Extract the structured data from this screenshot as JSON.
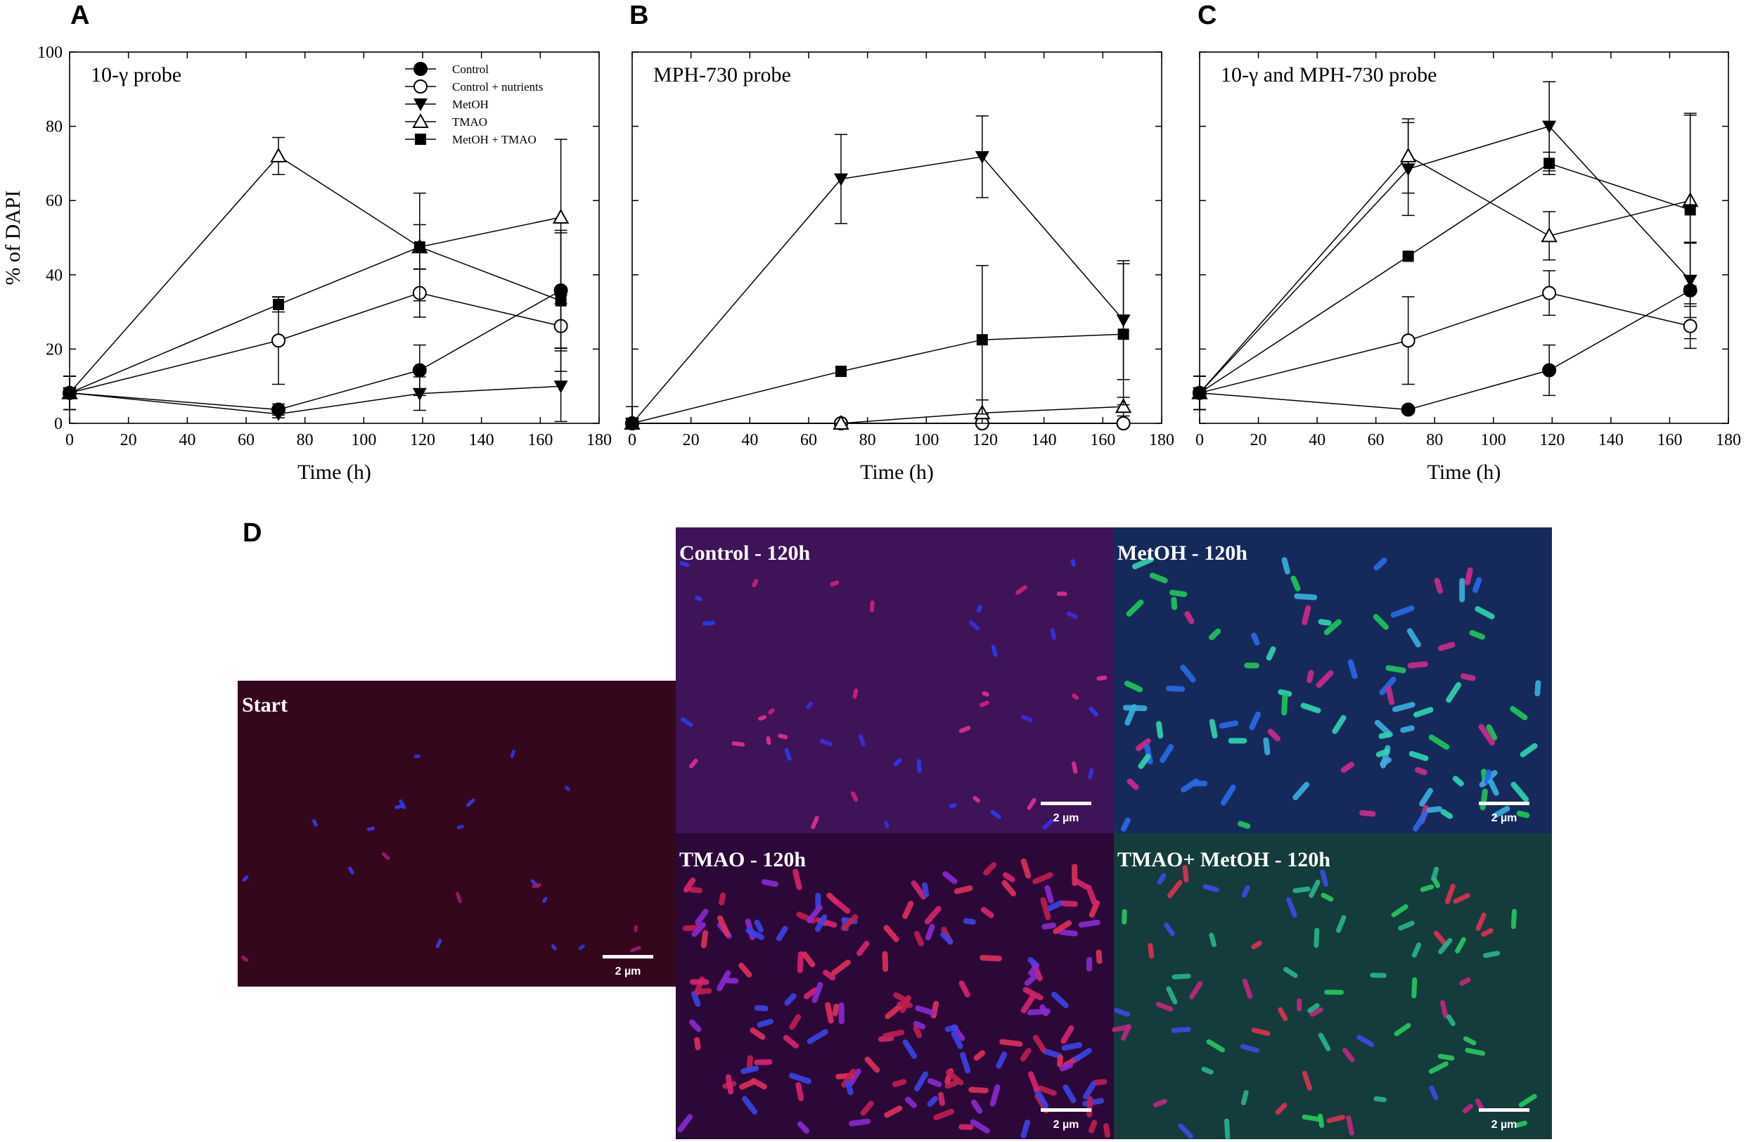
{
  "chart_data": [
    {
      "type": "line",
      "panel": "A",
      "probe_label": "10-γ probe",
      "xlabel": "Time (h)",
      "ylabel": "% of DAPI",
      "xlim": [
        0,
        180
      ],
      "ylim": [
        0,
        100
      ],
      "xticks": [
        0,
        20,
        40,
        60,
        80,
        100,
        120,
        140,
        160,
        180
      ],
      "yticks": [
        0,
        20,
        40,
        60,
        80,
        100
      ],
      "legend_position": "top-right",
      "series": [
        {
          "name": "Control",
          "marker": "circle-filled",
          "x": [
            0,
            71,
            119,
            167
          ],
          "y": [
            8.2,
            3.7,
            14.3,
            35.8
          ],
          "err": [
            4.5,
            1.5,
            6.8,
            15.5
          ]
        },
        {
          "name": "Control + nutrients",
          "marker": "circle-open",
          "x": [
            0,
            71,
            119,
            167
          ],
          "y": [
            8.2,
            22.3,
            35.1,
            26.2
          ],
          "err": [
            4.5,
            11.8,
            6.5,
            6.0
          ]
        },
        {
          "name": "MetOH",
          "marker": "triangle-down-filled",
          "x": [
            0,
            71,
            119,
            167
          ],
          "y": [
            8.2,
            2.5,
            8.0,
            10.0
          ],
          "err": [
            4.5,
            1.0,
            4.5,
            9.5
          ]
        },
        {
          "name": "TMAO",
          "marker": "triangle-up-open",
          "x": [
            0,
            71,
            119,
            167
          ],
          "y": [
            8.2,
            72.0,
            47.5,
            55.5
          ],
          "err": [
            4.5,
            5.0,
            6.0,
            21.0
          ]
        },
        {
          "name": "MetOH + TMAO",
          "marker": "square-filled",
          "x": [
            0,
            71,
            119,
            167
          ],
          "y": [
            8.2,
            32.0,
            47.5,
            33.0
          ],
          "err": [
            4.5,
            2.0,
            14.5,
            19.0
          ]
        }
      ]
    },
    {
      "type": "line",
      "panel": "B",
      "probe_label": "MPH-730 probe",
      "xlabel": "Time (h)",
      "xlim": [
        0,
        180
      ],
      "ylim": [
        0,
        100
      ],
      "xticks": [
        0,
        20,
        40,
        60,
        80,
        100,
        120,
        140,
        160,
        180
      ],
      "series": [
        {
          "name": "Control",
          "marker": "circle-filled",
          "x": [
            0,
            71,
            119,
            167
          ],
          "y": [
            0,
            0,
            0,
            0
          ],
          "err": [
            4.5,
            0,
            0,
            0
          ]
        },
        {
          "name": "Control + nutrients",
          "marker": "circle-open",
          "x": [
            0,
            71,
            119,
            167
          ],
          "y": [
            0,
            0,
            0,
            0
          ],
          "err": [
            4.5,
            0,
            0,
            0
          ]
        },
        {
          "name": "MetOH",
          "marker": "triangle-down-filled",
          "x": [
            0,
            71,
            119,
            167
          ],
          "y": [
            0,
            65.8,
            71.8,
            27.8
          ],
          "err": [
            4.5,
            12.0,
            11.0,
            16.0
          ]
        },
        {
          "name": "TMAO",
          "marker": "triangle-up-open",
          "x": [
            0,
            71,
            119,
            167
          ],
          "y": [
            0,
            0,
            2.8,
            4.5
          ],
          "err": [
            4.5,
            0,
            3.5,
            2.5
          ]
        },
        {
          "name": "MetOH + TMAO",
          "marker": "square-filled",
          "x": [
            0,
            71,
            119,
            167
          ],
          "y": [
            0,
            14.0,
            22.5,
            24.0
          ],
          "err": [
            4.5,
            0,
            20.0,
            19.0
          ]
        }
      ]
    },
    {
      "type": "line",
      "panel": "C",
      "probe_label": "10-γ and MPH-730 probe",
      "xlabel": "Time (h)",
      "xlim": [
        0,
        180
      ],
      "ylim": [
        0,
        100
      ],
      "xticks": [
        0,
        20,
        40,
        60,
        80,
        100,
        120,
        140,
        160,
        180
      ],
      "series": [
        {
          "name": "Control",
          "marker": "circle-filled",
          "x": [
            0,
            71,
            119,
            167
          ],
          "y": [
            8.2,
            3.7,
            14.3,
            35.8
          ],
          "err": [
            4.5,
            0,
            6.8,
            13.0
          ]
        },
        {
          "name": "Control + nutrients",
          "marker": "circle-open",
          "x": [
            0,
            71,
            119,
            167
          ],
          "y": [
            8.2,
            22.3,
            35.1,
            26.2
          ],
          "err": [
            4.5,
            11.8,
            6.0,
            6.0
          ]
        },
        {
          "name": "MetOH",
          "marker": "triangle-down-filled",
          "x": [
            0,
            71,
            119,
            167
          ],
          "y": [
            8.2,
            68.5,
            80.0,
            38.5
          ],
          "err": [
            4.5,
            12.5,
            12.0,
            10.0
          ]
        },
        {
          "name": "TMAO",
          "marker": "triangle-up-open",
          "x": [
            0,
            71,
            119,
            167
          ],
          "y": [
            8.2,
            72.0,
            50.5,
            60.0
          ],
          "err": [
            4.5,
            10.0,
            6.5,
            23.0
          ]
        },
        {
          "name": "MetOH + TMAO",
          "marker": "square-filled",
          "x": [
            0,
            71,
            119,
            167
          ],
          "y": [
            8.2,
            45.0,
            70.0,
            57.5
          ],
          "err": [
            4.5,
            0,
            3.0,
            26.0
          ]
        }
      ]
    }
  ],
  "panel_d": {
    "letter": "D",
    "scale_bar_label": "2 µm",
    "images": [
      {
        "label": "Start",
        "bg": "#34071d"
      },
      {
        "label": "Control - 120h",
        "bg": "#3f1358"
      },
      {
        "label": "MetOH - 120h",
        "bg": "#152a5a"
      },
      {
        "label": "TMAO - 120h",
        "bg": "#2c0838"
      },
      {
        "label": "TMAO+ MetOH - 120h",
        "bg": "#143c3c"
      }
    ]
  }
}
